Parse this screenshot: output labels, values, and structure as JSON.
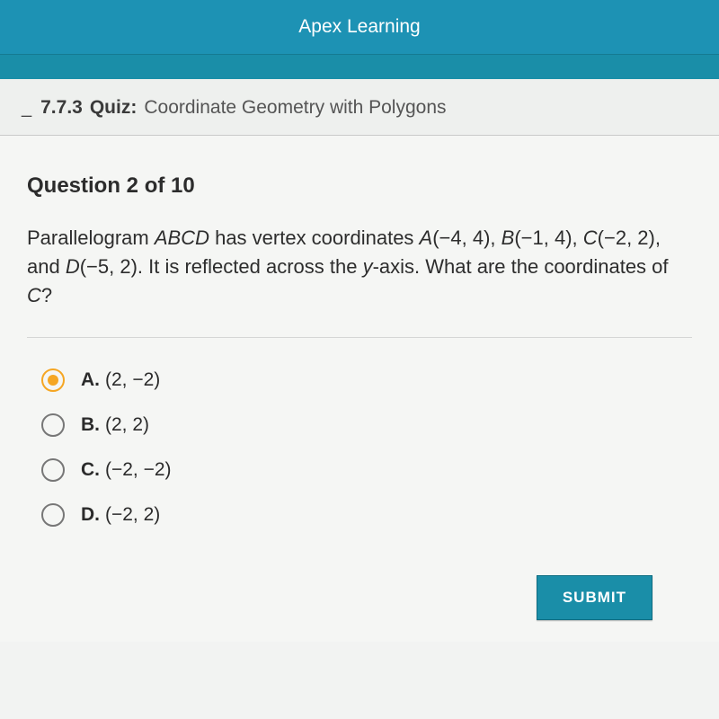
{
  "header": {
    "title": "Apex Learning"
  },
  "breadcrumb": {
    "code": "7.7.3",
    "type": "Quiz:",
    "title": "Coordinate Geometry with Polygons"
  },
  "question": {
    "counter": "Question 2 of 10",
    "pre": "Parallelogram ",
    "shape": "ABCD",
    "mid": " has vertex coordinates ",
    "A_lbl": "A",
    "A_val": "(−4, 4), ",
    "B_lbl": "B",
    "B_val": "(−1, 4), ",
    "C_lbl": "C",
    "C_val": "(−2, 2), and ",
    "D_lbl": "D",
    "D_val": "(−5, 2). It is reflected across the ",
    "axis_lbl": "y",
    "tail": "-axis. What are the coordinates of ",
    "ask_lbl": "C",
    "qmark": "?"
  },
  "options": [
    {
      "letter": "A.",
      "text": "(2, −2)",
      "selected": true
    },
    {
      "letter": "B.",
      "text": "(2, 2)",
      "selected": false
    },
    {
      "letter": "C.",
      "text": "(−2, −2)",
      "selected": false
    },
    {
      "letter": "D.",
      "text": "(−2, 2)",
      "selected": false
    }
  ],
  "submit": {
    "label": "SUBMIT"
  },
  "colors": {
    "header_bg": "#1d92b4",
    "subband_bg": "#1a8ea8",
    "accent_radio": "#f5a623",
    "submit_bg": "#1a8ea8"
  }
}
